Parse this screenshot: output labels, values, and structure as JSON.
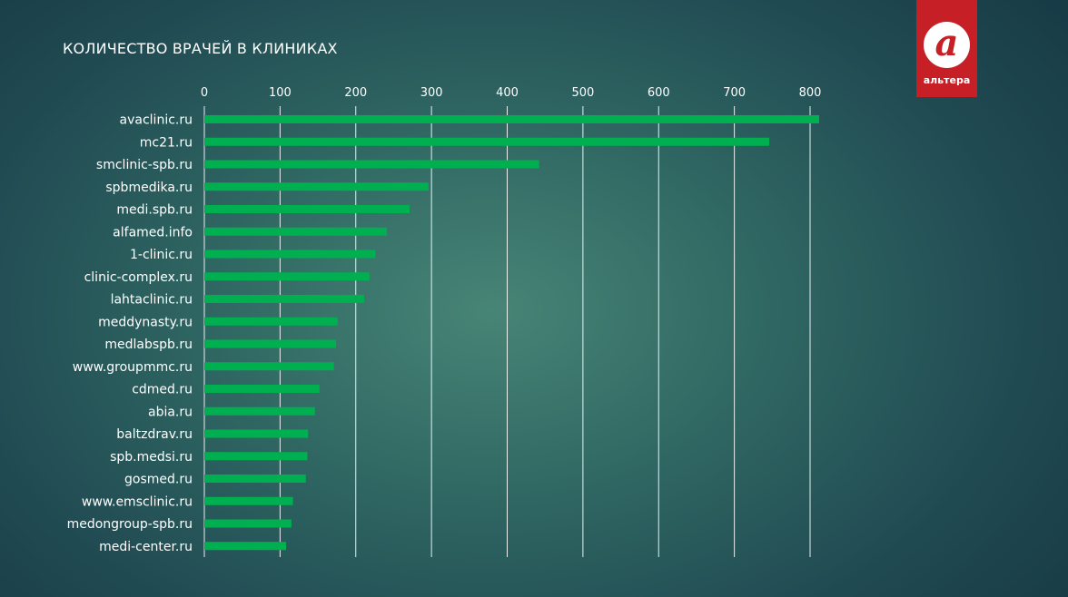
{
  "title": "КОЛИЧЕСТВО ВРАЧЕЙ В КЛИНИКАХ",
  "logo": {
    "glyph": "а",
    "text": "альтера"
  },
  "colors": {
    "bar": "#00b050",
    "grid": "#ffffff",
    "text": "#ffffff",
    "logo": "#c62026"
  },
  "chart_data": {
    "type": "bar",
    "orientation": "horizontal",
    "title": "КОЛИЧЕСТВО ВРАЧЕЙ В КЛИНИКАХ",
    "axis_position": "top",
    "grid": true,
    "xlim": [
      0,
      800
    ],
    "ticks": [
      0,
      100,
      200,
      300,
      400,
      500,
      600,
      700,
      800
    ],
    "categories": [
      "avaclinic.ru",
      "mc21.ru",
      "smclinic-spb.ru",
      "spbmedika.ru",
      "medi.spb.ru",
      "alfamed.info",
      "1-clinic.ru",
      "clinic-complex.ru",
      "lahtaclinic.ru",
      "meddynasty.ru",
      "medlabspb.ru",
      "www.groupmmc.ru",
      "cdmed.ru",
      "abia.ru",
      "baltzdrav.ru",
      "spb.medsi.ru",
      "gosmed.ru",
      "www.emsclinic.ru",
      "medongroup-spb.ru",
      "medi-center.ru"
    ],
    "values": [
      812,
      746,
      442,
      296,
      271,
      241,
      226,
      218,
      211,
      176,
      174,
      171,
      152,
      146,
      137,
      136,
      134,
      117,
      115,
      108
    ]
  }
}
